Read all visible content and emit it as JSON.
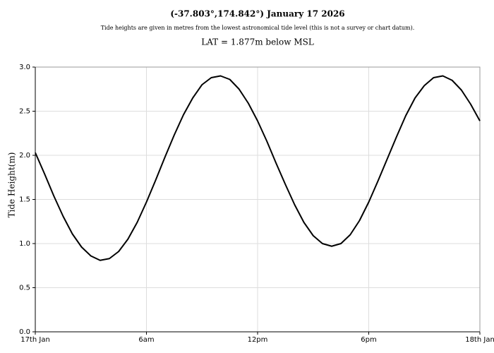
{
  "chart_data": {
    "type": "line",
    "title": "(-37.803°,174.842°) January 17 2026",
    "subtitle": "Tide heights are given in metres from the lowest astronomical tide level (this is not a survey or chart datum).",
    "annotation": "LAT = 1.877m below MSL",
    "y_label": "Tide Height(m)",
    "x": [
      0,
      0.5,
      1,
      1.5,
      2,
      2.5,
      3,
      3.5,
      4,
      4.5,
      5,
      5.5,
      6,
      6.5,
      7,
      7.5,
      8,
      8.5,
      9,
      9.5,
      10,
      10.5,
      11,
      11.5,
      12,
      12.5,
      13,
      13.5,
      14,
      14.5,
      15,
      15.5,
      16,
      16.5,
      17,
      17.5,
      18,
      18.5,
      19,
      19.5,
      20,
      20.5,
      21,
      21.5,
      22,
      22.5,
      23,
      23.5,
      24
    ],
    "series": [
      {
        "name": "Tide Height",
        "color": "#000000",
        "values": [
          2.03,
          1.79,
          1.54,
          1.31,
          1.11,
          0.96,
          0.86,
          0.81,
          0.83,
          0.91,
          1.05,
          1.24,
          1.47,
          1.72,
          1.98,
          2.23,
          2.46,
          2.65,
          2.8,
          2.88,
          2.9,
          2.86,
          2.75,
          2.59,
          2.39,
          2.16,
          1.91,
          1.67,
          1.44,
          1.24,
          1.09,
          1.0,
          0.97,
          1.0,
          1.1,
          1.26,
          1.47,
          1.71,
          1.96,
          2.21,
          2.45,
          2.65,
          2.79,
          2.88,
          2.9,
          2.85,
          2.74,
          2.58,
          2.39
        ]
      }
    ],
    "xlim": [
      0,
      24
    ],
    "xticks": [
      {
        "value": 0,
        "label": "17th Jan"
      },
      {
        "value": 6,
        "label": "6am"
      },
      {
        "value": 12,
        "label": "12pm"
      },
      {
        "value": 18,
        "label": "6pm"
      },
      {
        "value": 24,
        "label": "18th Jan"
      }
    ],
    "ylim": [
      0,
      3
    ],
    "yticks": [
      {
        "value": 0,
        "label": "0.0"
      },
      0.5,
      {
        "value": 1,
        "label": "1.0"
      },
      1.5,
      {
        "value": 2,
        "label": "2.0"
      },
      2.5,
      {
        "value": 3,
        "label": "3.0"
      }
    ],
    "grid": true
  }
}
